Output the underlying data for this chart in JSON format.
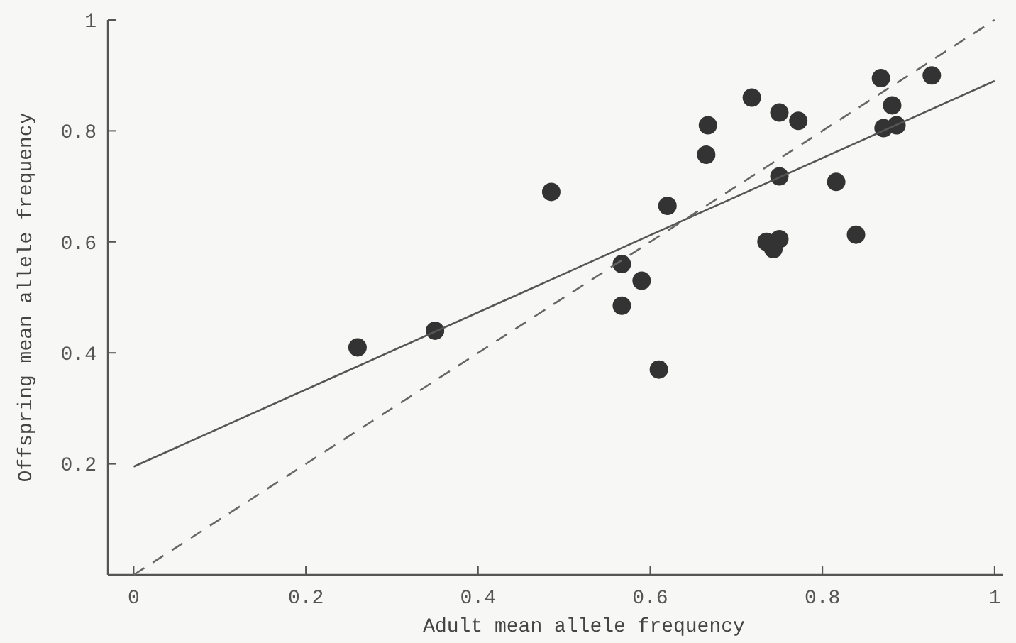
{
  "chart_data": {
    "type": "scatter",
    "xlabel": "Adult mean allele frequency",
    "ylabel": "Offspring mean allele frequency",
    "xlim": [
      -0.03,
      1.01
    ],
    "ylim": [
      0,
      1
    ],
    "xticks": [
      0,
      0.2,
      0.4,
      0.6,
      0.8,
      1
    ],
    "yticks": [
      0.2,
      0.4,
      0.6,
      0.8,
      1
    ],
    "series": [
      {
        "color": "#333333",
        "marker": "circle",
        "x": [
          0.26,
          0.35,
          0.485,
          0.62,
          0.567,
          0.59,
          0.567,
          0.61,
          0.667,
          0.665,
          0.718,
          0.75,
          0.772,
          0.75,
          0.735,
          0.75,
          0.743,
          0.816,
          0.839,
          0.868,
          0.881,
          0.871,
          0.886,
          0.927
        ],
        "values": [
          0.41,
          0.44,
          0.69,
          0.665,
          0.56,
          0.53,
          0.485,
          0.37,
          0.81,
          0.757,
          0.86,
          0.833,
          0.818,
          0.718,
          0.6,
          0.605,
          0.587,
          0.708,
          0.613,
          0.895,
          0.846,
          0.805,
          0.81,
          0.9
        ]
      },
      {
        "type": "line",
        "color": "#555555",
        "line_style": "solid",
        "marker": "none",
        "x": [
          0,
          1
        ],
        "values": [
          0.195,
          0.89
        ]
      },
      {
        "type": "line",
        "color": "#666666",
        "line_style": "dashed",
        "marker": "none",
        "x": [
          0,
          1
        ],
        "values": [
          0,
          1
        ]
      }
    ]
  }
}
